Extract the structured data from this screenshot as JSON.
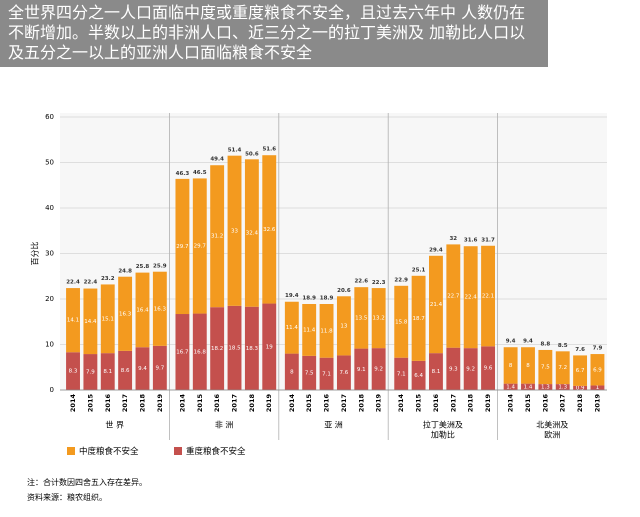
{
  "chart_data": {
    "type": "bar",
    "stacked": true,
    "title": "全世界四分之一人口面临中度或重度粮食不安全，且过去六年中 人数仍在不断增加。半数以上的非洲人口、近三分之一的拉丁美洲及 加勒比人口以及五分之一以上的亚洲人口面临粮食不安全",
    "ylabel": "百分比",
    "groups": [
      {
        "label": [
          "世 界"
        ],
        "categories": [
          "2014",
          "2015",
          "2016",
          "2017",
          "2018",
          "2019"
        ]
      },
      {
        "label": [
          "非 洲"
        ],
        "categories": [
          "2014",
          "2015",
          "2016",
          "2017",
          "2018",
          "2019"
        ]
      },
      {
        "label": [
          "亚 洲"
        ],
        "categories": [
          "2014",
          "2015",
          "2016",
          "2017",
          "2018",
          "2019"
        ]
      },
      {
        "label": [
          "拉丁美洲及",
          "加勒比"
        ],
        "categories": [
          "2014",
          "2015",
          "2016",
          "2017",
          "2018",
          "2019"
        ]
      },
      {
        "label": [
          "北美洲及",
          "欧洲"
        ],
        "categories": [
          "2014",
          "2015",
          "2016",
          "2017",
          "2018",
          "2019"
        ]
      }
    ],
    "series": [
      {
        "name": "重度粮食不安全",
        "color": "#c4504d",
        "values": [
          8.3,
          7.9,
          8.1,
          8.6,
          9.4,
          9.7,
          16.7,
          16.8,
          18.2,
          18.5,
          18.3,
          19.0,
          8.0,
          7.5,
          7.1,
          7.6,
          9.1,
          9.2,
          7.1,
          6.4,
          8.1,
          9.3,
          9.2,
          9.6,
          1.4,
          1.4,
          1.3,
          1.3,
          0.9,
          1.0
        ]
      },
      {
        "name": "中度粮食不安全",
        "color": "#f39a1f",
        "values": [
          14.1,
          14.4,
          15.1,
          16.3,
          16.4,
          16.3,
          29.7,
          29.7,
          31.2,
          33.0,
          32.4,
          32.6,
          11.4,
          11.4,
          11.8,
          13.0,
          13.5,
          13.2,
          15.8,
          18.7,
          21.4,
          22.7,
          22.4,
          22.1,
          8.0,
          8.0,
          7.5,
          7.2,
          6.7,
          6.9
        ]
      }
    ],
    "totals": [
      22.4,
      22.4,
      23.2,
      24.8,
      25.8,
      25.9,
      46.3,
      46.5,
      49.4,
      51.4,
      50.6,
      51.6,
      19.4,
      18.9,
      18.9,
      20.6,
      22.6,
      22.3,
      22.9,
      25.1,
      29.4,
      32.0,
      31.6,
      31.7,
      9.4,
      9.4,
      8.8,
      8.5,
      7.6,
      7.9
    ],
    "ylim": [
      0,
      60
    ],
    "yticks": [
      0,
      10,
      20,
      30,
      40,
      50,
      60
    ],
    "grid": true,
    "legend_order": [
      1,
      0
    ],
    "notes": [
      "注：合计数因四舍五入存在差异。",
      "资料来源：粮农组织。"
    ]
  }
}
